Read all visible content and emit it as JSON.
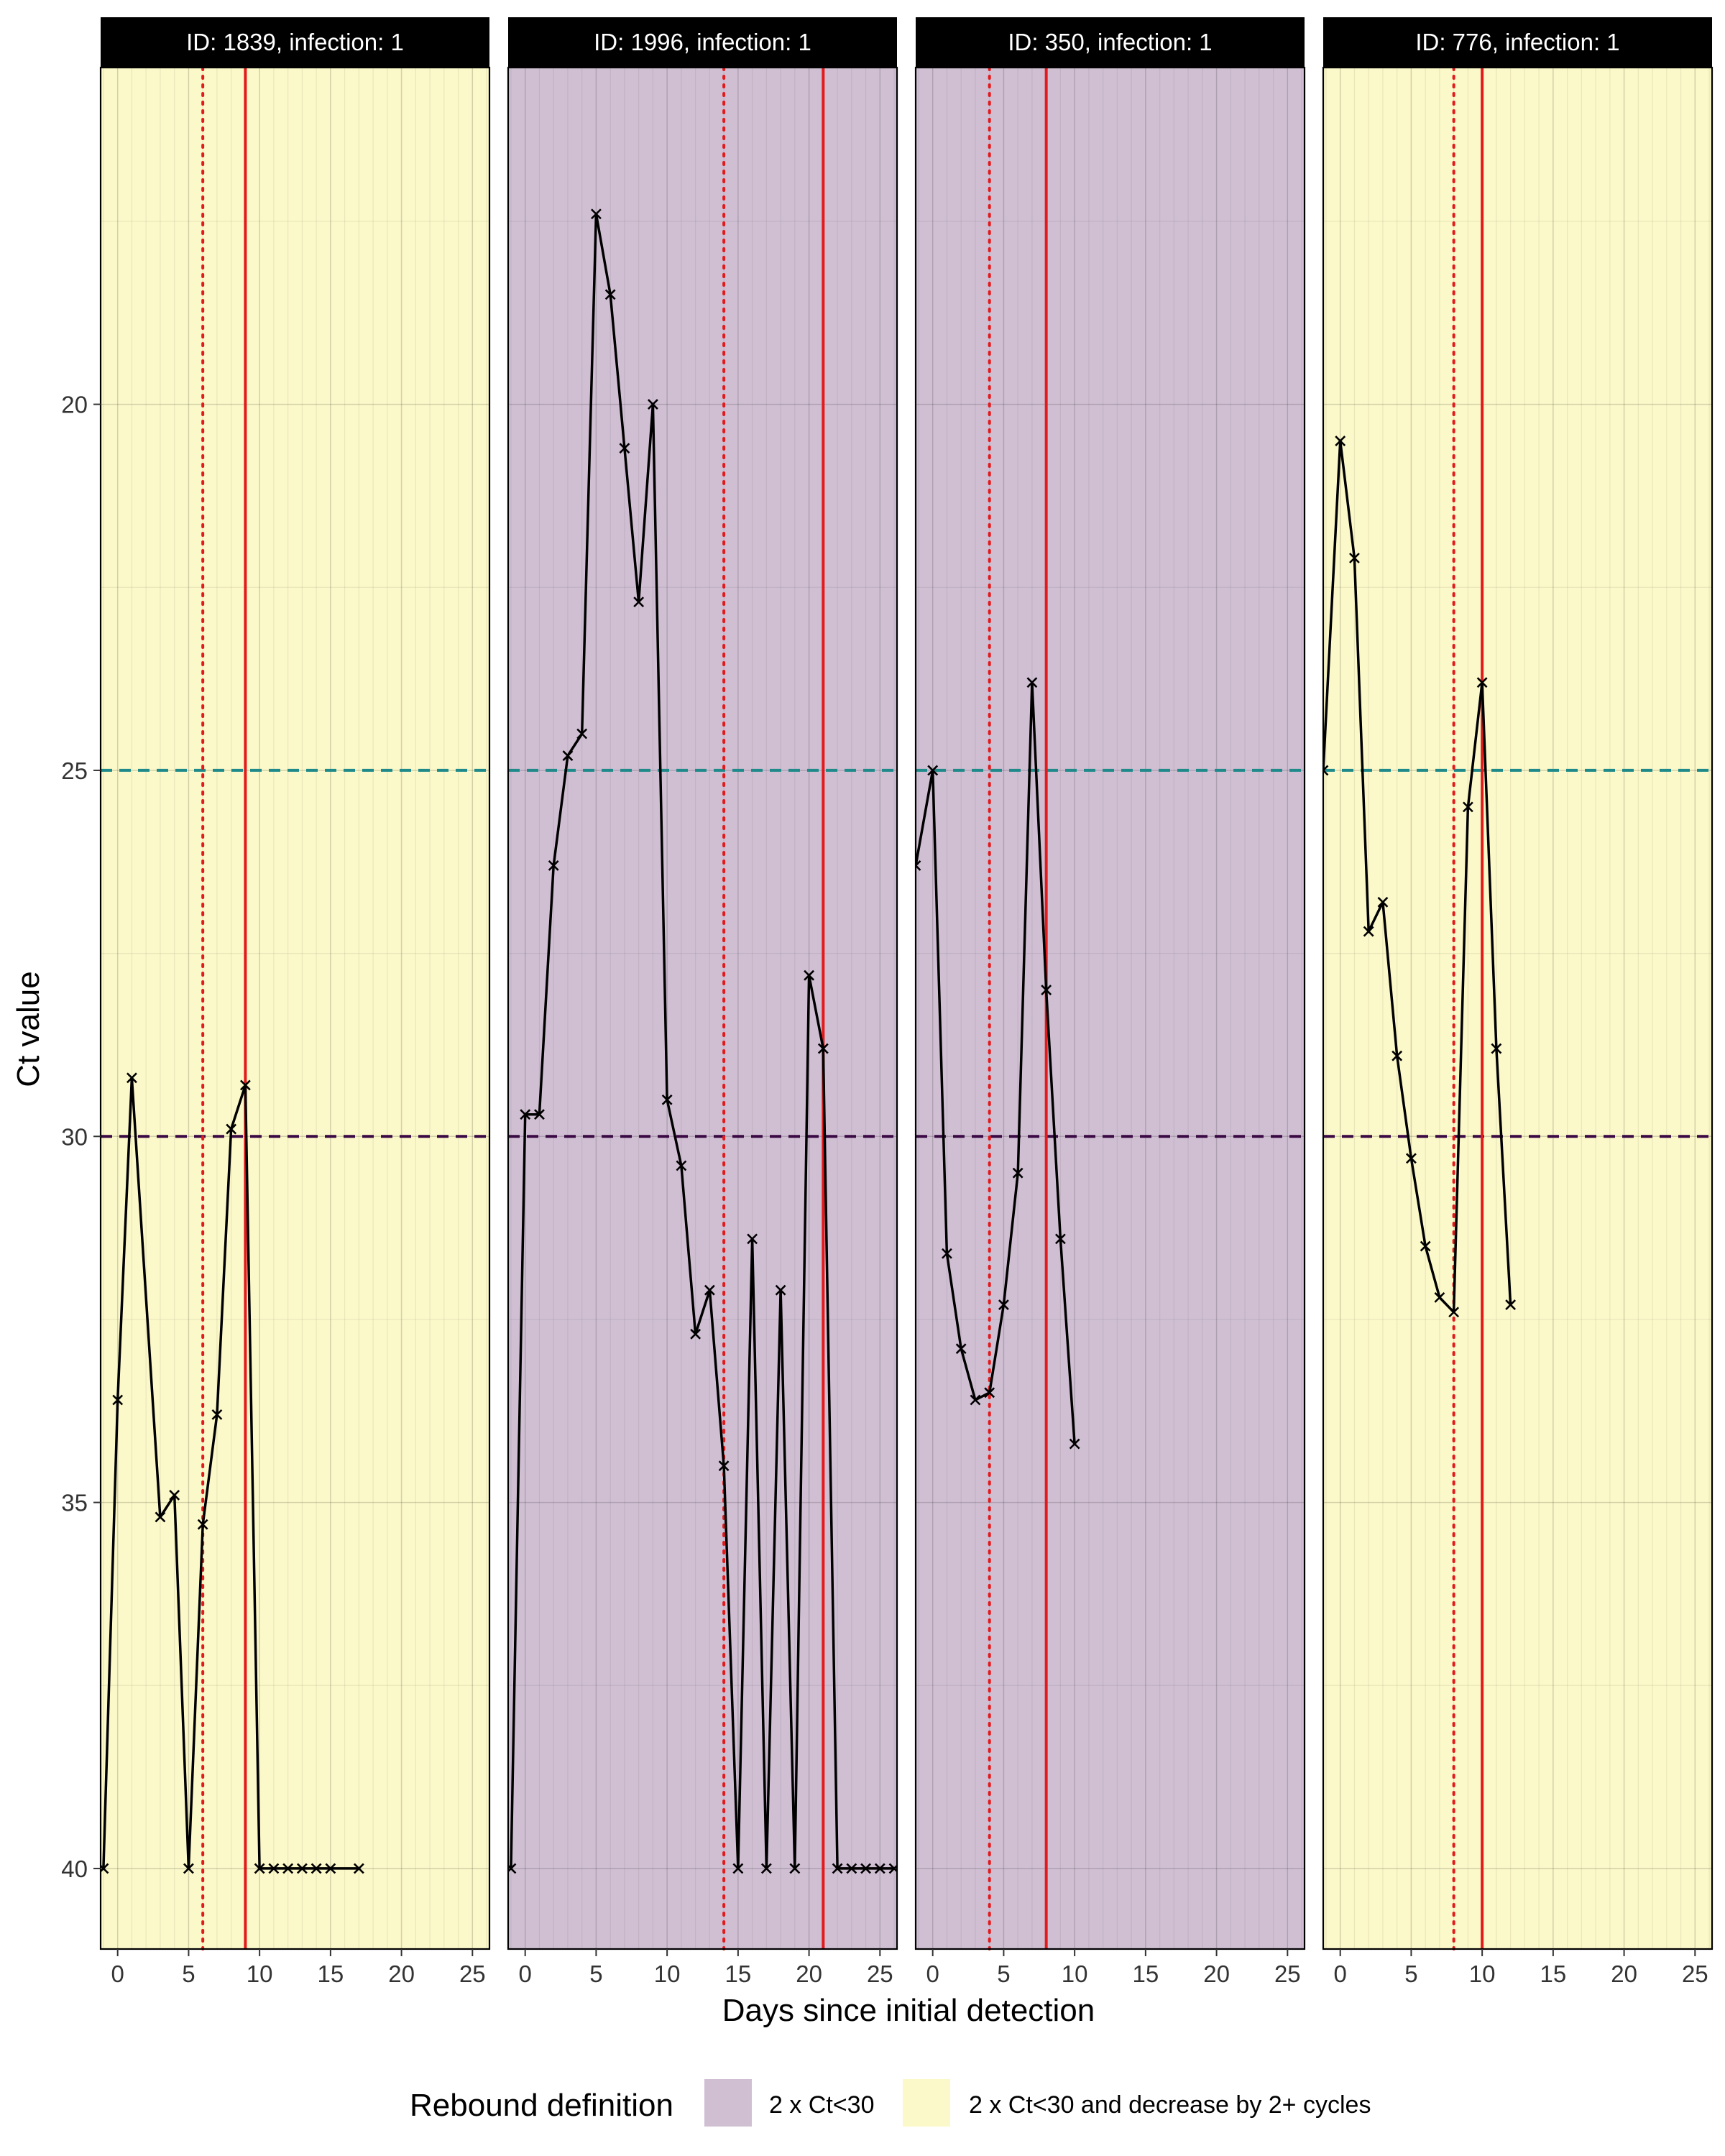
{
  "figure": {
    "ylabel": "Ct value",
    "xlabel": "Days since initial detection",
    "legend_title": "Rebound definition",
    "legend_items": [
      {
        "key": "ct30",
        "label": "2 x Ct<30",
        "color": "#d0bfd3"
      },
      {
        "key": "ct30drop",
        "label": "2 x Ct<30 and decrease by 2+ cycles",
        "color": "#fbf8c9"
      }
    ]
  },
  "colors": {
    "ref_line_25": "#1f8a8a",
    "ref_line_30": "#3b0a45",
    "vline": "#e31a1c",
    "series": "#000000",
    "strip": "#000000",
    "strip_text": "#ffffff"
  },
  "chart_data": [
    {
      "type": "line",
      "title": "ID: 1839, infection: 1",
      "rebound_definition": "ct30drop",
      "x": [
        -1,
        0,
        1,
        3,
        4,
        5,
        6,
        7,
        8,
        9,
        10,
        11,
        12,
        13,
        14,
        15,
        17
      ],
      "y": [
        40,
        33.6,
        29.2,
        35.2,
        34.9,
        40,
        35.3,
        33.8,
        29.9,
        29.3,
        40,
        40,
        40,
        40,
        40,
        40,
        40
      ],
      "vline_dotted": 6,
      "vline_solid": 9,
      "xlim": [
        -1.2,
        26.2
      ],
      "ylim": [
        41.1,
        15.4
      ],
      "xticks": [
        0,
        5,
        10,
        15,
        20,
        25
      ],
      "yticks": [
        20,
        25,
        30,
        35,
        40
      ],
      "hlines": [
        25,
        30
      ]
    },
    {
      "type": "line",
      "title": "ID: 1996, infection: 1",
      "rebound_definition": "ct30",
      "x": [
        -1,
        0,
        1,
        2,
        3,
        4,
        5,
        6,
        7,
        8,
        9,
        10,
        11,
        12,
        13,
        14,
        15,
        16,
        17,
        18,
        19,
        20,
        21,
        22,
        23,
        24,
        25,
        26
      ],
      "y": [
        40,
        29.7,
        29.7,
        26.3,
        24.8,
        24.5,
        17.4,
        18.5,
        20.6,
        22.7,
        20.0,
        29.5,
        30.4,
        32.7,
        32.1,
        34.5,
        40,
        31.4,
        40,
        32.1,
        40,
        27.8,
        28.8,
        40,
        40,
        40,
        40,
        40
      ],
      "vline_dotted": 14,
      "vline_solid": 21,
      "xlim": [
        -1.2,
        26.2
      ],
      "ylim": [
        41.1,
        15.4
      ],
      "xticks": [
        0,
        5,
        10,
        15,
        20,
        25
      ],
      "yticks": [
        20,
        25,
        30,
        35,
        40
      ],
      "hlines": [
        25,
        30
      ]
    },
    {
      "type": "line",
      "title": "ID: 350, infection: 1",
      "rebound_definition": "ct30",
      "x": [
        -1.2,
        0,
        1,
        2,
        3,
        4,
        5,
        6,
        7,
        8,
        9,
        10
      ],
      "y": [
        26.3,
        25.0,
        31.6,
        32.9,
        33.6,
        33.5,
        32.3,
        30.5,
        23.8,
        28.0,
        31.4,
        34.2
      ],
      "vline_dotted": 4,
      "vline_solid": 8,
      "xlim": [
        -1.2,
        26.2
      ],
      "ylim": [
        41.1,
        15.4
      ],
      "xticks": [
        0,
        5,
        10,
        15,
        20,
        25
      ],
      "yticks": [
        20,
        25,
        30,
        35,
        40
      ],
      "hlines": [
        25,
        30
      ]
    },
    {
      "type": "line",
      "title": "ID: 776, infection: 1",
      "rebound_definition": "ct30drop",
      "x": [
        -1.2,
        0,
        1,
        2,
        3,
        4,
        5,
        6,
        7,
        8,
        9,
        10,
        11,
        12
      ],
      "y": [
        25.0,
        20.5,
        22.1,
        27.2,
        26.8,
        28.9,
        30.3,
        31.5,
        32.2,
        32.4,
        25.5,
        23.8,
        28.8,
        32.3
      ],
      "vline_dotted": 8,
      "vline_solid": 10,
      "xlim": [
        -1.2,
        26.2
      ],
      "ylim": [
        41.1,
        15.4
      ],
      "xticks": [
        0,
        5,
        10,
        15,
        20,
        25
      ],
      "yticks": [
        20,
        25,
        30,
        35,
        40
      ],
      "hlines": [
        25,
        30
      ]
    }
  ]
}
